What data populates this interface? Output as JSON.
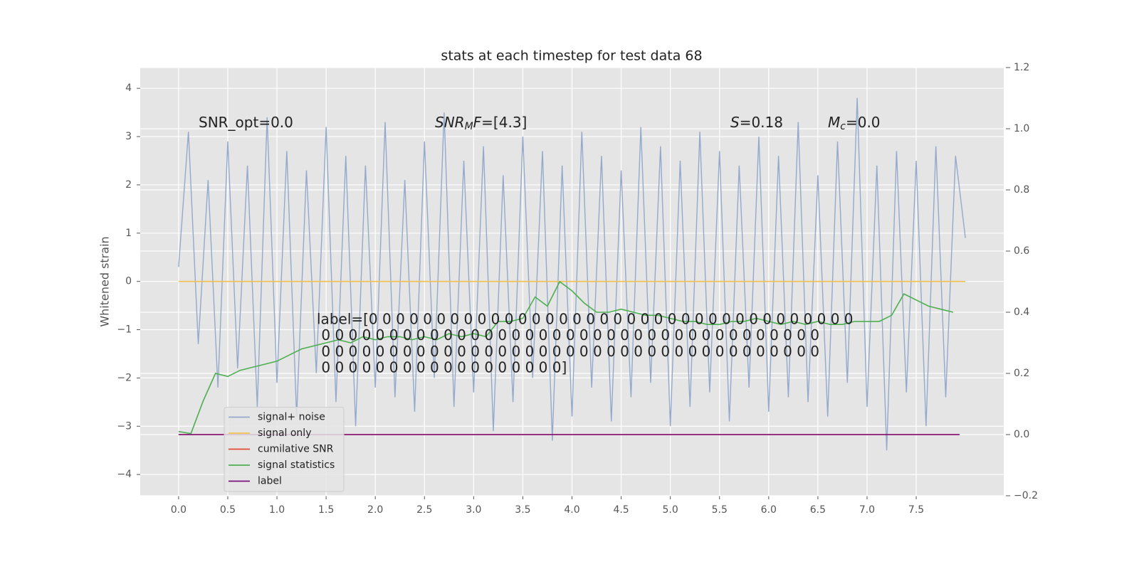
{
  "chart_data": {
    "type": "line",
    "title": "stats at each timestep for test data 68",
    "ylabel": "Whitened strain",
    "xlim": [
      -0.39,
      8.39
    ],
    "ylim": [
      -4.44,
      4.43
    ],
    "y2lim": [
      -0.2,
      1.2
    ],
    "xticks": [
      {
        "value": 0,
        "label": "0.0"
      },
      0.5,
      {
        "value": 1,
        "label": "1.0"
      },
      1.5,
      {
        "value": 2,
        "label": "2.0"
      },
      2.5,
      {
        "value": 3,
        "label": "3.0"
      },
      3.5,
      {
        "value": 4,
        "label": "4.0"
      },
      4.5,
      {
        "value": 5,
        "label": "5.0"
      },
      5.5,
      {
        "value": 6,
        "label": "6.0"
      },
      6.5,
      {
        "value": 7,
        "label": "7.0"
      },
      7.5
    ],
    "yticks": [
      {
        "value": -4,
        "label": "−4"
      },
      {
        "value": -3,
        "label": "−3"
      },
      {
        "value": -2,
        "label": "−2"
      },
      {
        "value": -1,
        "label": "−1"
      },
      0,
      1,
      2,
      3,
      4
    ],
    "y2ticks": [
      {
        "value": -0.2,
        "label": "−0.2"
      },
      {
        "value": 0,
        "label": "0.0"
      },
      0.2,
      0.4,
      0.6,
      0.8,
      {
        "value": 1,
        "label": "1.0"
      },
      1.2
    ],
    "grid": true,
    "legend": "lower left",
    "series": [
      {
        "name": "signal+ noise",
        "color": "#94a9cb",
        "axis": "y",
        "x": [
          0,
          0.1,
          0.2,
          0.3,
          0.4,
          0.5,
          0.6,
          0.7,
          0.8,
          0.9,
          1,
          1.1,
          1.2,
          1.3,
          1.4,
          1.5,
          1.6,
          1.7,
          1.8,
          1.9,
          2,
          2.1,
          2.2,
          2.3,
          2.4,
          2.5,
          2.6,
          2.7,
          2.8,
          2.9,
          3,
          3.1,
          3.2,
          3.3,
          3.4,
          3.5,
          3.6,
          3.7,
          3.8,
          3.9,
          4,
          4.1,
          4.2,
          4.3,
          4.4,
          4.5,
          4.6,
          4.7,
          4.8,
          4.9,
          5,
          5.1,
          5.2,
          5.3,
          5.4,
          5.5,
          5.6,
          5.7,
          5.8,
          5.9,
          6,
          6.1,
          6.2,
          6.3,
          6.4,
          6.5,
          6.6,
          6.7,
          6.8,
          6.9,
          7,
          7.1,
          7.2,
          7.3,
          7.4,
          7.5,
          7.6,
          7.7,
          7.8,
          7.9,
          8
        ],
        "values": [
          0.3,
          3.1,
          -1.3,
          2.1,
          -2.2,
          2.9,
          -1.8,
          2.4,
          -2.6,
          3.4,
          -2.1,
          2.7,
          -2.8,
          2.3,
          -1.9,
          3.2,
          -2.5,
          2.6,
          -3.0,
          2.4,
          -2.2,
          3.3,
          -2.4,
          2.1,
          -2.7,
          2.9,
          -2.0,
          3.5,
          -2.6,
          2.5,
          -2.3,
          2.8,
          -3.1,
          2.2,
          -2.5,
          3.0,
          -2.0,
          2.7,
          -3.3,
          2.4,
          -2.8,
          3.1,
          -2.2,
          2.6,
          -2.9,
          2.3,
          -2.4,
          3.2,
          -2.1,
          2.8,
          -3.0,
          2.5,
          -2.6,
          3.1,
          -2.3,
          2.7,
          -2.9,
          2.4,
          -2.2,
          3.0,
          -2.7,
          2.6,
          -2.4,
          3.3,
          -2.5,
          2.2,
          -2.8,
          2.9,
          -2.1,
          3.8,
          -2.6,
          2.4,
          -3.5,
          2.7,
          -2.3,
          2.5,
          -3.0,
          2.8,
          -2.4,
          2.6,
          0.9
        ]
      },
      {
        "name": "signal only",
        "color": "#f2c14e",
        "axis": "y",
        "x": [
          0,
          8
        ],
        "values": [
          0,
          0
        ]
      },
      {
        "name": "cumilative SNR",
        "color": "#e24a33",
        "axis": "y2",
        "x": [
          0,
          7.94
        ],
        "values": [
          0,
          0
        ]
      },
      {
        "name": "signal statistics",
        "color": "#4caf50",
        "axis": "y2",
        "x": [
          0,
          0.125,
          0.25,
          0.375,
          0.5,
          0.625,
          0.75,
          0.875,
          1,
          1.125,
          1.25,
          1.375,
          1.5,
          1.625,
          1.75,
          1.875,
          2,
          2.125,
          2.25,
          2.375,
          2.5,
          2.625,
          2.75,
          2.875,
          3,
          3.125,
          3.25,
          3.375,
          3.5,
          3.625,
          3.75,
          3.875,
          4,
          4.125,
          4.25,
          4.375,
          4.5,
          4.625,
          4.75,
          4.875,
          5,
          5.125,
          5.25,
          5.375,
          5.5,
          5.625,
          5.75,
          5.875,
          6,
          6.125,
          6.25,
          6.375,
          6.5,
          6.625,
          6.75,
          6.875,
          7,
          7.125,
          7.25,
          7.375,
          7.5,
          7.625,
          7.75,
          7.875
        ],
        "values": [
          0.01,
          0.003,
          0.11,
          0.2,
          0.19,
          0.21,
          0.22,
          0.23,
          0.24,
          0.26,
          0.28,
          0.29,
          0.3,
          0.31,
          0.3,
          0.32,
          0.31,
          0.32,
          0.32,
          0.31,
          0.32,
          0.31,
          0.33,
          0.32,
          0.33,
          0.32,
          0.37,
          0.37,
          0.38,
          0.45,
          0.42,
          0.5,
          0.47,
          0.43,
          0.4,
          0.4,
          0.41,
          0.4,
          0.39,
          0.39,
          0.38,
          0.37,
          0.37,
          0.36,
          0.36,
          0.37,
          0.37,
          0.38,
          0.37,
          0.36,
          0.37,
          0.36,
          0.37,
          0.36,
          0.36,
          0.37,
          0.37,
          0.37,
          0.39,
          0.46,
          0.44,
          0.42,
          0.41,
          0.4
        ]
      },
      {
        "name": "label",
        "color": "#7b0f7b",
        "axis": "y2",
        "x": [
          0,
          7.94
        ],
        "values": [
          0,
          0
        ]
      }
    ],
    "annotations": [
      {
        "parts": [
          {
            "text": "SNR_opt=0.0"
          }
        ]
      },
      {
        "parts": [
          {
            "text": "SNR",
            "italic": true
          },
          {
            "text": "M",
            "italic": true,
            "sub": true
          },
          {
            "text": "F",
            "italic": true
          },
          {
            "text": "=[4.3]"
          }
        ]
      },
      {
        "parts": [
          {
            "text": "S",
            "italic": true
          },
          {
            "text": "=0.18"
          }
        ]
      },
      {
        "parts": [
          {
            "text": "M",
            "italic": true
          },
          {
            "text": "c",
            "italic": true,
            "sub": true
          },
          {
            "text": "=0.0"
          }
        ]
      }
    ],
    "label_text_lines": [
      "label=[0 0 0 0 0 0 0 0 0 0 0 0 0 0 0 0 0 0 0 0 0 0 0 0 0 0 0 0 0 0 0 0 0 0 0 0",
      " 0 0 0 0 0 0 0 0 0 0 0 0 0 0 0 0 0 0 0 0 0 0 0 0 0 0 0 0 0 0 0 0 0 0 0 0 0",
      " 0 0 0 0 0 0 0 0 0 0 0 0 0 0 0 0 0 0 0 0 0 0 0 0 0 0 0 0 0 0 0 0 0 0 0 0 0",
      " 0 0 0 0 0 0 0 0 0 0 0 0 0 0 0 0 0 0]"
    ]
  }
}
